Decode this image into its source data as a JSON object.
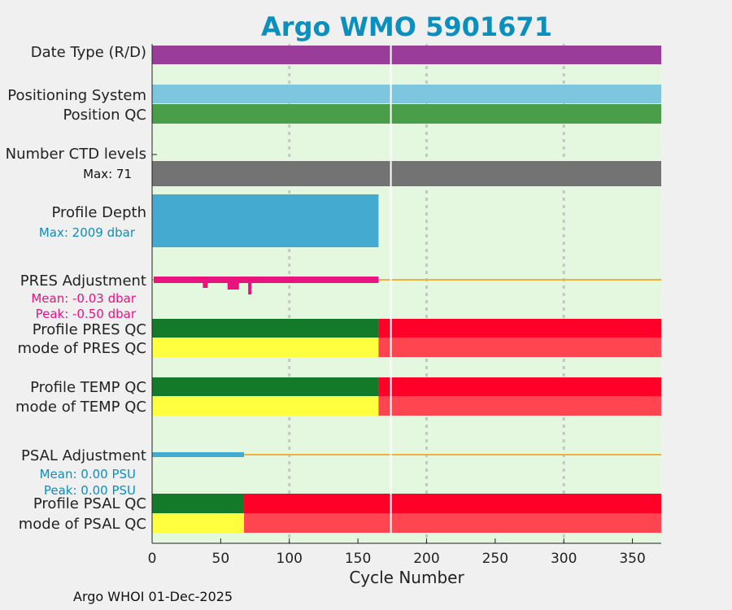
{
  "chart_data": {
    "type": "bar",
    "title": "Argo WMO 5901671",
    "xlabel": "Cycle Number",
    "xlim": [
      0,
      371
    ],
    "xticks": [
      0,
      50,
      100,
      150,
      200,
      250,
      300,
      350
    ],
    "grid_x": [
      100,
      200,
      300
    ],
    "rows": [
      {
        "label": "Date Type (R/D)",
        "segments": [
          {
            "x0": 0,
            "x1": 371,
            "color": "#9a3c99"
          }
        ]
      },
      {
        "label": "Positioning System",
        "segments": [
          {
            "x0": 0,
            "x1": 371,
            "color": "#7ec5df"
          }
        ]
      },
      {
        "label": "Position QC",
        "segments": [
          {
            "x0": 0,
            "x1": 371,
            "color": "#4a9e4a"
          }
        ]
      },
      {
        "label": "Number CTD levels",
        "max_label": "Max: 71",
        "max_value": 71,
        "color": "#737373",
        "cycle_range": [
          0,
          371
        ]
      },
      {
        "label": "Profile Depth",
        "max_label": "Max: 2009 dbar",
        "max_value": 2009,
        "color": "#44aacf",
        "cycle_range": [
          0,
          165
        ]
      },
      {
        "label": "PRES Adjustment",
        "mean_label": "Mean: -0.03 dbar",
        "peak_label": "Peak: -0.50 dbar",
        "mean": -0.03,
        "peak": -0.5,
        "color": "#e8137d",
        "zero_color": "#f0b040",
        "cycle_range": [
          0,
          165
        ]
      },
      {
        "label": "Profile PRES QC",
        "segments": [
          {
            "x0": 0,
            "x1": 165,
            "color": "#137a2a"
          },
          {
            "x0": 165,
            "x1": 371,
            "color": "#ff0028"
          }
        ]
      },
      {
        "label": "mode of PRES QC",
        "segments": [
          {
            "x0": 0,
            "x1": 165,
            "color": "#ffff40"
          },
          {
            "x0": 165,
            "x1": 371,
            "color": "#ff4550"
          }
        ]
      },
      {
        "label": "Profile TEMP QC",
        "segments": [
          {
            "x0": 0,
            "x1": 165,
            "color": "#137a2a"
          },
          {
            "x0": 165,
            "x1": 371,
            "color": "#ff0028"
          }
        ]
      },
      {
        "label": "mode of TEMP QC",
        "segments": [
          {
            "x0": 0,
            "x1": 165,
            "color": "#ffff40"
          },
          {
            "x0": 165,
            "x1": 371,
            "color": "#ff4550"
          }
        ]
      },
      {
        "label": "PSAL Adjustment",
        "mean_label": "Mean: 0.00 PSU",
        "peak_label": "Peak: 0.00 PSU",
        "mean": 0.0,
        "peak": 0.0,
        "color": "#44aacf",
        "zero_color": "#f0b040",
        "cycle_range": [
          0,
          67
        ]
      },
      {
        "label": "Profile PSAL QC",
        "segments": [
          {
            "x0": 0,
            "x1": 67,
            "color": "#137a2a"
          },
          {
            "x0": 67,
            "x1": 371,
            "color": "#ff0028"
          }
        ]
      },
      {
        "label": "mode of PSAL QC",
        "segments": [
          {
            "x0": 0,
            "x1": 67,
            "color": "#ffff40"
          },
          {
            "x0": 67,
            "x1": 371,
            "color": "#ff4550"
          }
        ]
      }
    ],
    "marker_cycle": 174,
    "colors": {
      "background": "#e4f8e0",
      "title": "#0a8fbf",
      "pres_text": "#e8137d",
      "psal_text": "#0a8fbf"
    }
  },
  "footer": "Argo WHOI 01-Dec-2025"
}
